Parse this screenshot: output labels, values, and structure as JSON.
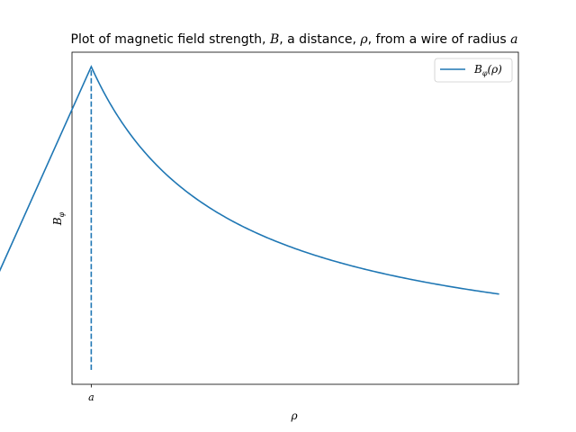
{
  "chart_data": {
    "type": "line",
    "title": {
      "pre_B": "Plot of magnetic field strength, ",
      "B": "B",
      "pre_rho": ", a distance, ",
      "rho": "ρ",
      "pre_a": ", from a wire of radius ",
      "a": "a"
    },
    "xlabel": "ρ",
    "ylabel": "B",
    "ylabel_sub": "φ",
    "x_ticks": [
      {
        "value": 1.0,
        "label": "a"
      }
    ],
    "xlim": [
      0.8585,
      4.1415
    ],
    "ylim": [
      -0.0475,
      1.0475
    ],
    "x_axis_ticks_shown": true,
    "y_axis_ticks_shown": false,
    "grid": false,
    "legend_position": "upper right",
    "legend": {
      "name_main": "B",
      "name_sub": "φ",
      "name_arg": "(ρ)"
    },
    "series": [
      {
        "style": "solid",
        "color": "#1f77b4",
        "inside": {
          "x_from": 0.0,
          "x_to": 1.0,
          "law": "y = x"
        },
        "outside": {
          "x_from": 1.0,
          "x_to": 4.0,
          "law": "y = 1/x"
        }
      },
      {
        "style": "dashed",
        "color": "#1f77b4",
        "x": [
          1.0,
          1.0
        ],
        "y": [
          0.0,
          1.0
        ]
      }
    ]
  }
}
